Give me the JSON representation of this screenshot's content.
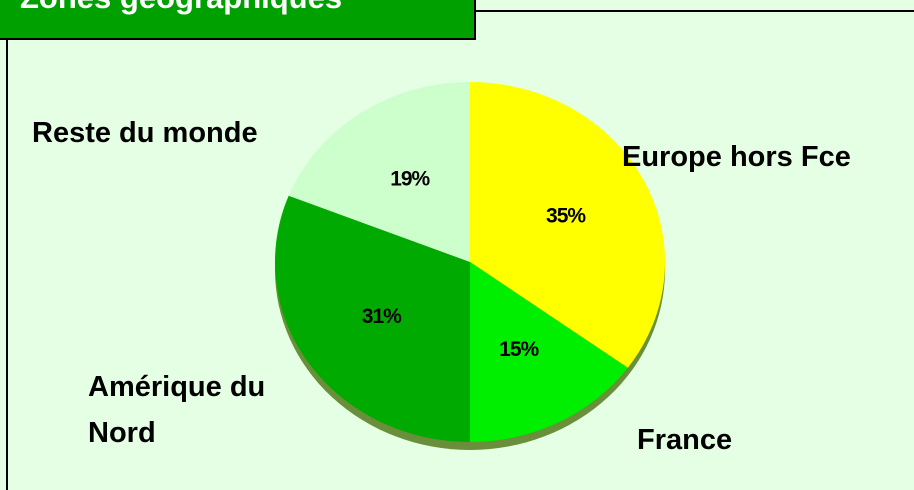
{
  "chart_data": {
    "type": "pie",
    "title": "Zones géographiques",
    "categories": [
      "Europe hors Fce",
      "France",
      "Amérique du Nord",
      "Reste du monde"
    ],
    "values": [
      35,
      15,
      31,
      19
    ],
    "value_labels": [
      "35%",
      "15%",
      "31%",
      "19%"
    ],
    "colors": [
      "#ffff00",
      "#00ee00",
      "#00aa00",
      "#ccffcc"
    ]
  }
}
